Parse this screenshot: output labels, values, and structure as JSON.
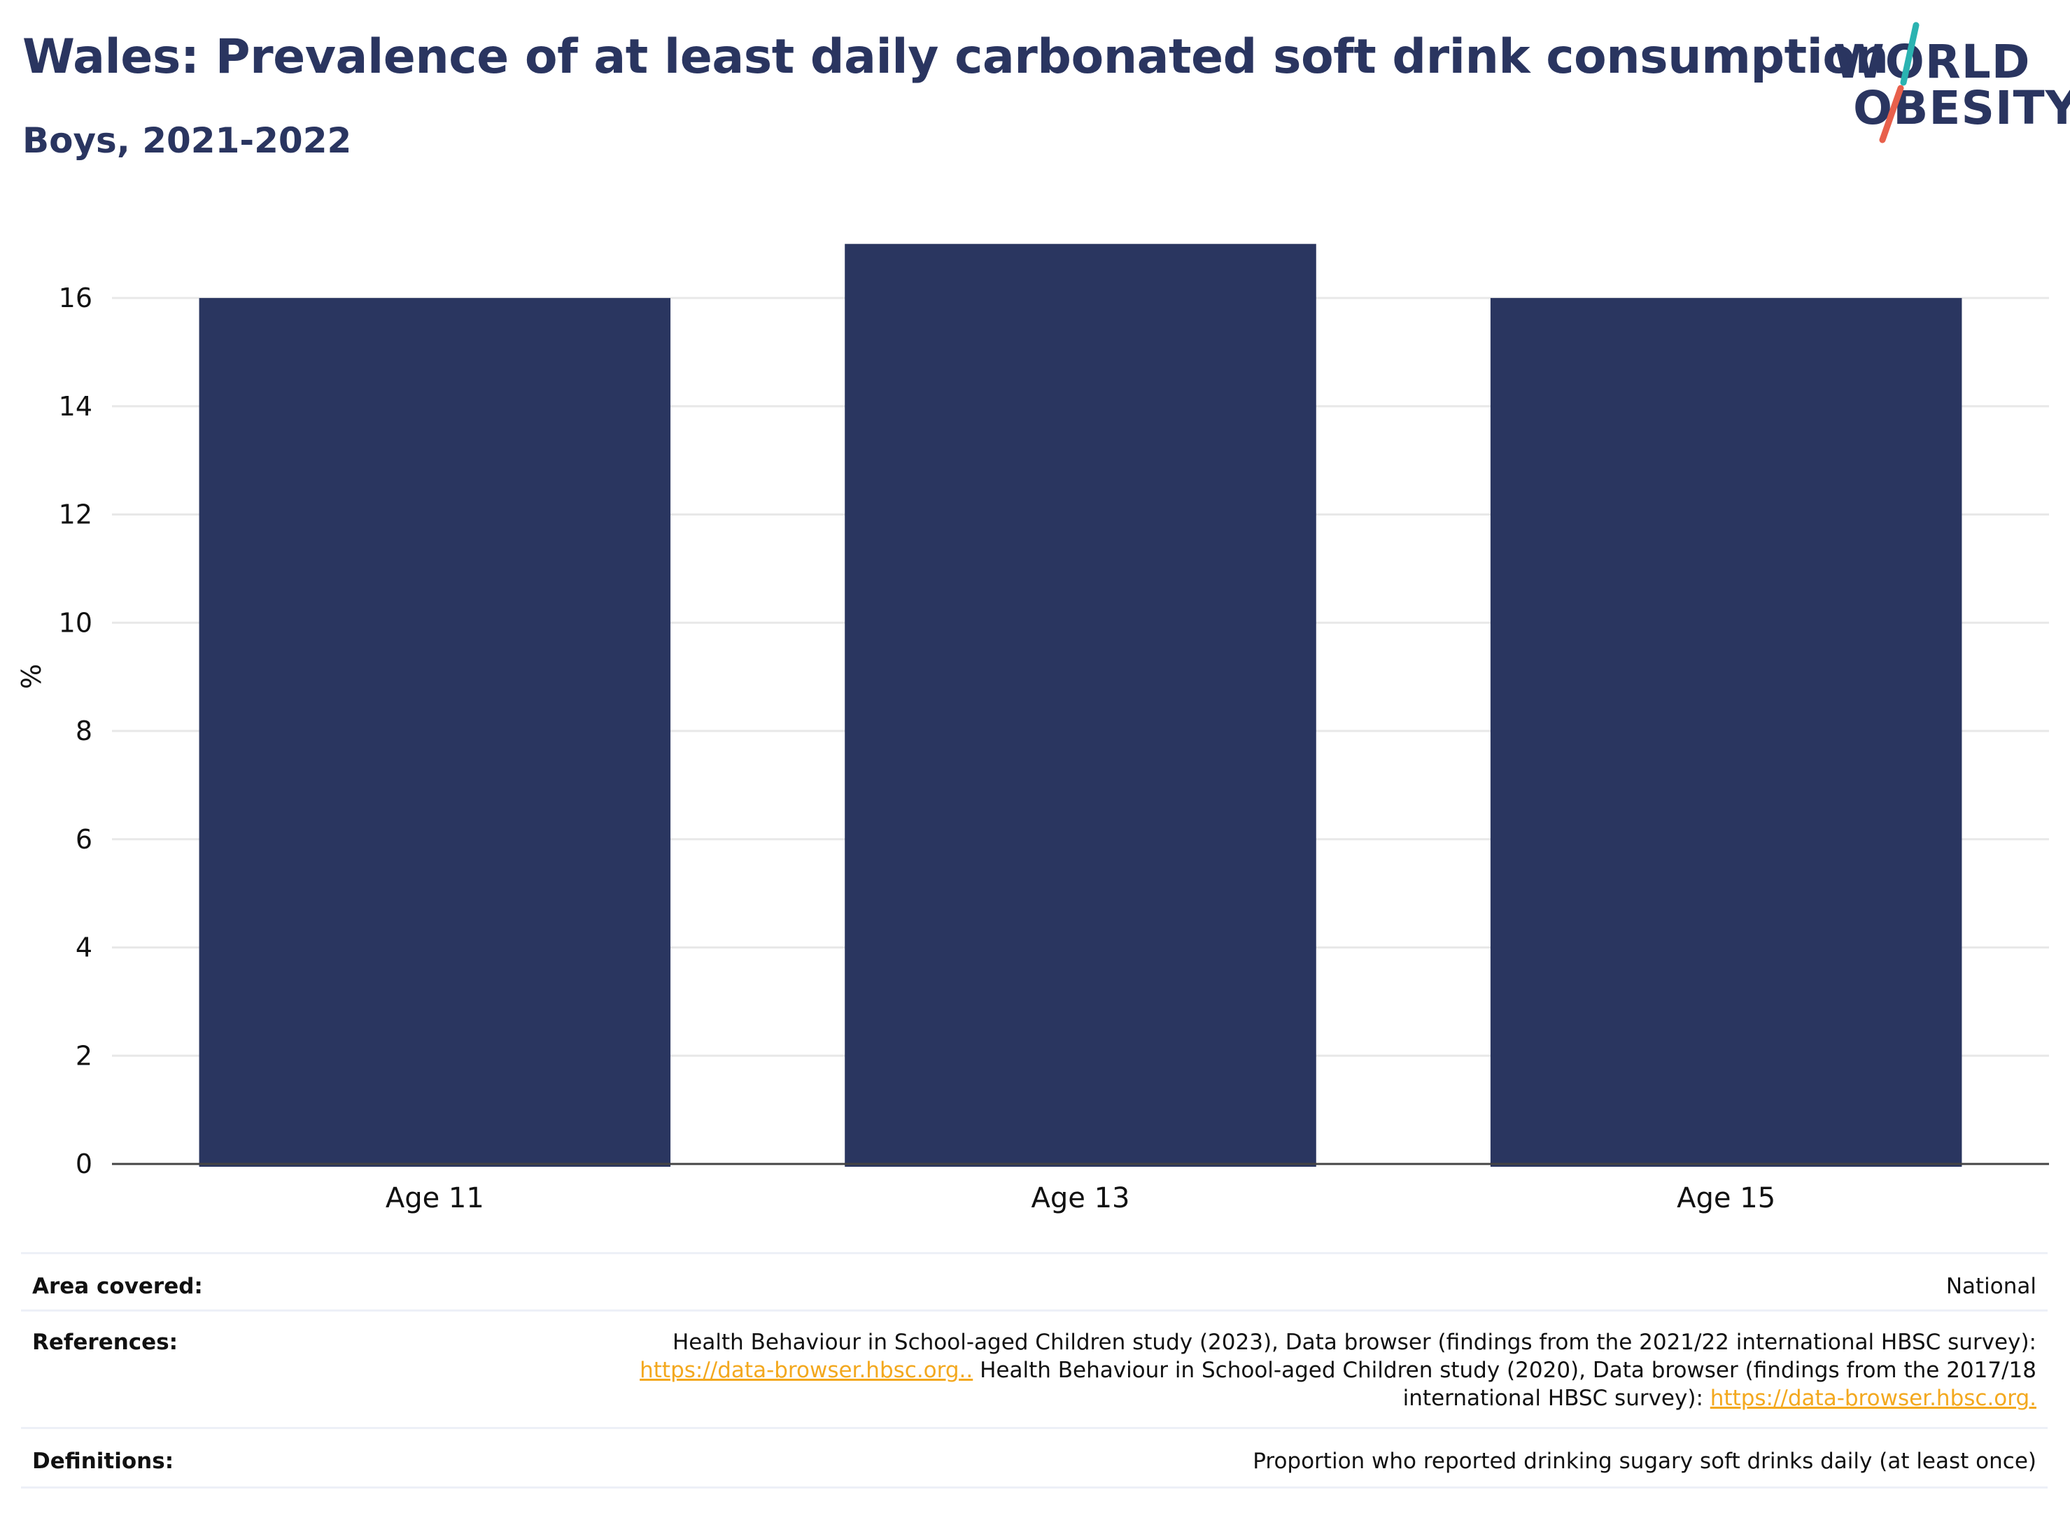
{
  "title": "Wales: Prevalence of at least daily carbonated soft drink consumption",
  "subtitle": "Boys, 2021-2022",
  "logo": {
    "line1": "WORLD",
    "line2": "OBESITY",
    "slash_colors": [
      "#2bb3b1",
      "#e8604c"
    ]
  },
  "colors": {
    "bar": "#2a3660",
    "heading": "#2a3560",
    "grid": "#e8e8e8",
    "link": "#f3a81e"
  },
  "chart_data": {
    "type": "bar",
    "categories": [
      "Age 11",
      "Age 13",
      "Age 15"
    ],
    "values": [
      16,
      17,
      16
    ],
    "ylabel": "%",
    "xlabel": "",
    "ylim": [
      0,
      17.5
    ],
    "yticks": [
      0,
      2,
      4,
      6,
      8,
      10,
      12,
      14,
      16
    ],
    "grid": true,
    "legend": "none"
  },
  "meta": {
    "area_label": "Area covered:",
    "area_value": "National",
    "references_label": "References:",
    "references_line1": "Health Behaviour in School-aged Children study (2023), Data browser (findings from the 2021/22 international HBSC survey):",
    "references_link1": "https://data-browser.hbsc.org..",
    "references_line2": " Health Behaviour in School-aged Children study (2020), Data browser (findings from the 2017/18",
    "references_line3": "international HBSC survey): ",
    "references_link2": "https://data-browser.hbsc.org.",
    "definitions_label": "Definitions:",
    "definitions_value": "Proportion who reported drinking sugary soft drinks daily (at least once)"
  }
}
